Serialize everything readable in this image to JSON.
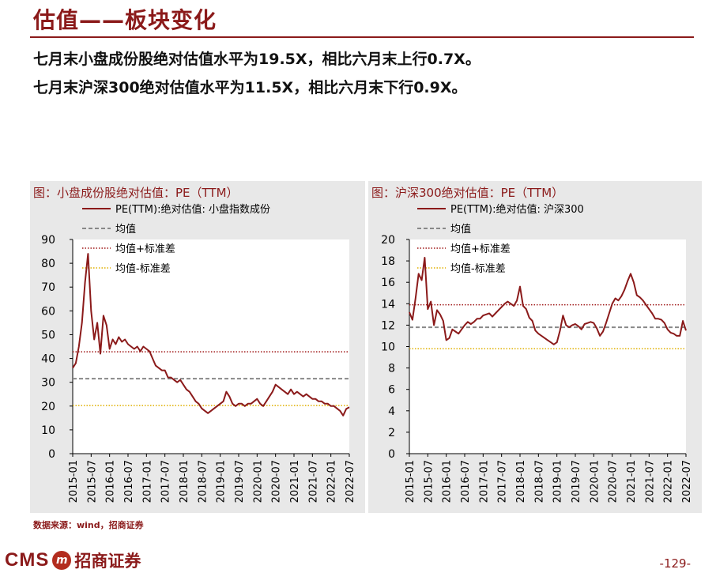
{
  "header": {
    "title": "估值——板块变化",
    "line1": "七月末小盘成份股绝对估值水平为19.5X，相比六月末上行0.7X。",
    "line2": "七月末沪深300绝对估值水平为11.5X，相比六月末下行0.9X。"
  },
  "footer": {
    "source": "数据来源：wind，招商证券",
    "logo_text": "CMS",
    "logo_mark": "m",
    "logo_cn": "招商证券",
    "page_number": "-129-"
  },
  "colors": {
    "series": "#8b1a1a",
    "mean": "#888888",
    "upper": "#a01818",
    "lower": "#e0b000",
    "panel": "#e8e8e8"
  },
  "chart_data": [
    {
      "type": "line",
      "title": "图：小盘成份股绝对估值：PE（TTM）",
      "ylim": [
        0,
        90
      ],
      "yticks": [
        "0",
        "10",
        "20",
        "30",
        "40",
        "50",
        "60",
        "70",
        "80",
        "90"
      ],
      "xticks": [
        "2015-01",
        "2015-07",
        "2016-01",
        "2016-07",
        "2017-01",
        "2017-07",
        "2018-01",
        "2018-07",
        "2019-01",
        "2019-07",
        "2020-01",
        "2020-07",
        "2021-01",
        "2021-07",
        "2022-01",
        "2022-07"
      ],
      "grid": false,
      "legend_position": "top-left",
      "series": [
        {
          "name": "PE(TTM):绝对估值: 小盘指数成份",
          "x": [
            "2015-01",
            "2015-02",
            "2015-03",
            "2015-04",
            "2015-05",
            "2015-06",
            "2015-07",
            "2015-08",
            "2015-09",
            "2015-10",
            "2015-11",
            "2015-12",
            "2016-01",
            "2016-02",
            "2016-03",
            "2016-04",
            "2016-05",
            "2016-06",
            "2016-07",
            "2016-08",
            "2016-09",
            "2016-10",
            "2016-11",
            "2016-12",
            "2017-01",
            "2017-02",
            "2017-03",
            "2017-04",
            "2017-05",
            "2017-06",
            "2017-07",
            "2017-08",
            "2017-09",
            "2017-10",
            "2017-11",
            "2017-12",
            "2018-01",
            "2018-02",
            "2018-03",
            "2018-04",
            "2018-05",
            "2018-06",
            "2018-07",
            "2018-08",
            "2018-09",
            "2018-10",
            "2018-11",
            "2018-12",
            "2019-01",
            "2019-02",
            "2019-03",
            "2019-04",
            "2019-05",
            "2019-06",
            "2019-07",
            "2019-08",
            "2019-09",
            "2019-10",
            "2019-11",
            "2019-12",
            "2020-01",
            "2020-02",
            "2020-03",
            "2020-04",
            "2020-05",
            "2020-06",
            "2020-07",
            "2020-08",
            "2020-09",
            "2020-10",
            "2020-11",
            "2020-12",
            "2021-01",
            "2021-02",
            "2021-03",
            "2021-04",
            "2021-05",
            "2021-06",
            "2021-07",
            "2021-08",
            "2021-09",
            "2021-10",
            "2021-11",
            "2021-12",
            "2022-01",
            "2022-02",
            "2022-03",
            "2022-04",
            "2022-05",
            "2022-06",
            "2022-07"
          ],
          "values": [
            36,
            38,
            45,
            55,
            72,
            84,
            60,
            48,
            55,
            42,
            58,
            54,
            44,
            48,
            46,
            49,
            47,
            48,
            46,
            45,
            44,
            45,
            43,
            45,
            44,
            43,
            40,
            37,
            36,
            35,
            35,
            32,
            32,
            31,
            30,
            31,
            29,
            27,
            26,
            24,
            22,
            21,
            19,
            18,
            17,
            18,
            19,
            20,
            21,
            22,
            26,
            24,
            21,
            20,
            21,
            21,
            20,
            21,
            21,
            22,
            23,
            21,
            20,
            22,
            24,
            26,
            29,
            28,
            27,
            26,
            25,
            27,
            25,
            26,
            25,
            24,
            25,
            24,
            23,
            23,
            22,
            22,
            21,
            21,
            20,
            20,
            19,
            18,
            16,
            18.8,
            19.5
          ]
        }
      ],
      "reference_lines": [
        {
          "name": "均值",
          "value": 31.5,
          "style": "dashed"
        },
        {
          "name": "均值+标准差",
          "value": 42.8,
          "style": "dotted"
        },
        {
          "name": "均值-标准差",
          "value": 20.2,
          "style": "dotted"
        }
      ]
    },
    {
      "type": "line",
      "title": "图：沪深300绝对估值：PE（TTM）",
      "ylim": [
        0,
        20
      ],
      "yticks": [
        "0",
        "2",
        "4",
        "6",
        "8",
        "10",
        "12",
        "14",
        "16",
        "18",
        "20"
      ],
      "xticks": [
        "2015-01",
        "2015-07",
        "2016-01",
        "2016-07",
        "2017-01",
        "2017-07",
        "2018-01",
        "2018-07",
        "2019-01",
        "2019-07",
        "2020-01",
        "2020-07",
        "2021-01",
        "2021-07",
        "2022-01",
        "2022-07"
      ],
      "grid": false,
      "legend_position": "top-left",
      "series": [
        {
          "name": "PE(TTM):绝对估值: 沪深300",
          "x": [
            "2015-01",
            "2015-02",
            "2015-03",
            "2015-04",
            "2015-05",
            "2015-06",
            "2015-07",
            "2015-08",
            "2015-09",
            "2015-10",
            "2015-11",
            "2015-12",
            "2016-01",
            "2016-02",
            "2016-03",
            "2016-04",
            "2016-05",
            "2016-06",
            "2016-07",
            "2016-08",
            "2016-09",
            "2016-10",
            "2016-11",
            "2016-12",
            "2017-01",
            "2017-02",
            "2017-03",
            "2017-04",
            "2017-05",
            "2017-06",
            "2017-07",
            "2017-08",
            "2017-09",
            "2017-10",
            "2017-11",
            "2017-12",
            "2018-01",
            "2018-02",
            "2018-03",
            "2018-04",
            "2018-05",
            "2018-06",
            "2018-07",
            "2018-08",
            "2018-09",
            "2018-10",
            "2018-11",
            "2018-12",
            "2019-01",
            "2019-02",
            "2019-03",
            "2019-04",
            "2019-05",
            "2019-06",
            "2019-07",
            "2019-08",
            "2019-09",
            "2019-10",
            "2019-11",
            "2019-12",
            "2020-01",
            "2020-02",
            "2020-03",
            "2020-04",
            "2020-05",
            "2020-06",
            "2020-07",
            "2020-08",
            "2020-09",
            "2020-10",
            "2020-11",
            "2020-12",
            "2021-01",
            "2021-02",
            "2021-03",
            "2021-04",
            "2021-05",
            "2021-06",
            "2021-07",
            "2021-08",
            "2021-09",
            "2021-10",
            "2021-11",
            "2021-12",
            "2022-01",
            "2022-02",
            "2022-03",
            "2022-04",
            "2022-05",
            "2022-06",
            "2022-07"
          ],
          "values": [
            13.2,
            12.5,
            14.5,
            16.8,
            16.2,
            18.3,
            13.5,
            14.2,
            12.0,
            13.4,
            13.0,
            12.4,
            10.6,
            10.8,
            11.6,
            11.4,
            11.2,
            11.6,
            12.0,
            12.3,
            12.1,
            12.3,
            12.6,
            12.6,
            12.9,
            13.0,
            13.1,
            12.8,
            13.1,
            13.4,
            13.7,
            14.0,
            14.2,
            14.0,
            13.8,
            14.3,
            15.6,
            13.8,
            13.5,
            12.7,
            12.4,
            11.5,
            11.2,
            11.0,
            10.8,
            10.6,
            10.4,
            10.2,
            10.4,
            11.5,
            12.9,
            12.0,
            11.8,
            12.0,
            12.1,
            11.9,
            11.6,
            12.1,
            12.2,
            12.3,
            12.2,
            11.7,
            11.0,
            11.4,
            12.2,
            13.1,
            14.0,
            14.5,
            14.3,
            14.7,
            15.3,
            16.1,
            16.8,
            16.0,
            14.8,
            14.6,
            14.3,
            13.9,
            13.5,
            13.1,
            12.6,
            12.6,
            12.5,
            12.2,
            11.6,
            11.3,
            11.2,
            11.0,
            11.0,
            12.4,
            11.5
          ]
        }
      ],
      "reference_lines": [
        {
          "name": "均值",
          "value": 11.8,
          "style": "dashed"
        },
        {
          "name": "均值+标准差",
          "value": 13.9,
          "style": "dotted"
        },
        {
          "name": "均值-标准差",
          "value": 9.8,
          "style": "dotted"
        }
      ]
    }
  ]
}
